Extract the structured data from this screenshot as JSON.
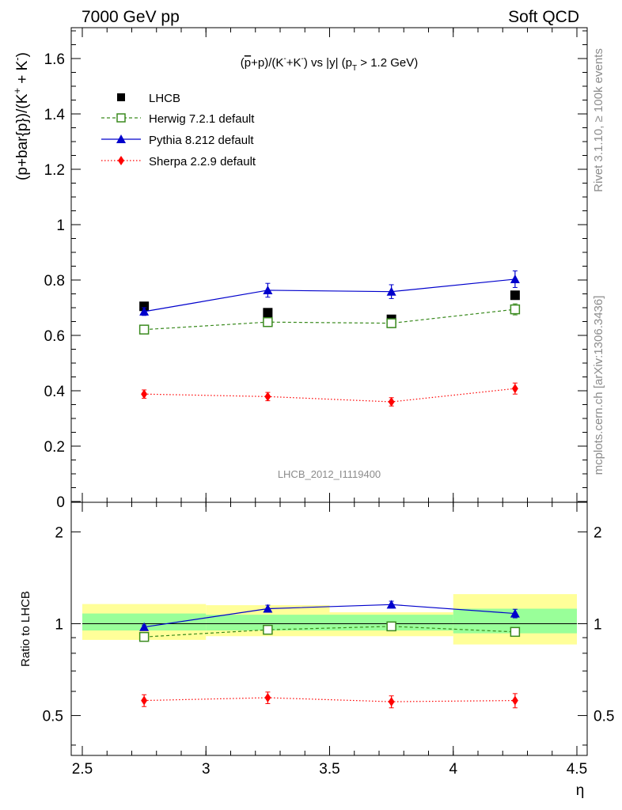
{
  "header": {
    "left": "7000 GeV pp",
    "right": "Soft QCD"
  },
  "side": {
    "rivet": "Rivet 3.1.10, ≥ 100k events",
    "mcplots": "mcplots.cern.ch [arXiv:1306.3436]"
  },
  "chart_data": [
    {
      "type": "line",
      "panel": "main",
      "title_parts": {
        "a": "(",
        "b": "p",
        "c": "+p)/(K",
        "d": "-",
        "e": "+K",
        "f": "-",
        "g": ") vs |y| (p",
        "h": "T",
        "i": " > 1.2 GeV)"
      },
      "ylabel": "(p+bar{p})/(K",
      "ylabel_sup1": "+",
      "ylabel_mid": " + K",
      "ylabel_sup2": "-",
      "ylabel_end": ")",
      "watermark": "LHCB_2012_I1119400",
      "xlim": [
        2.5,
        4.5
      ],
      "ylim": [
        0,
        1.72
      ],
      "yticks": [
        {
          "v": 0,
          "label": "0"
        },
        {
          "v": 0.2,
          "label": "0.2"
        },
        {
          "v": 0.4,
          "label": "0.4"
        },
        {
          "v": 0.6,
          "label": "0.6"
        },
        {
          "v": 0.8,
          "label": "0.8"
        },
        {
          "v": 1.0,
          "label": "1"
        },
        {
          "v": 1.2,
          "label": "1.2"
        },
        {
          "v": 1.4,
          "label": "1.4"
        },
        {
          "v": 1.6,
          "label": "1.6"
        }
      ],
      "x": [
        2.75,
        3.25,
        3.75,
        4.25
      ],
      "series": [
        {
          "name": "LHCB",
          "key": "lhcb",
          "color": "#000000",
          "marker": "square",
          "line": "none",
          "values": [
            0.705,
            0.682,
            0.658,
            0.745
          ],
          "errors": [
            0.01,
            0.01,
            0.01,
            0.01
          ]
        },
        {
          "name": "Herwig 7.2.1 default",
          "key": "herwig",
          "color": "#3a8a1e",
          "marker": "open-square",
          "line": "dashed",
          "values": [
            0.621,
            0.648,
            0.644,
            0.694
          ],
          "errors": [
            0.012,
            0.016,
            0.016,
            0.02
          ]
        },
        {
          "name": "Pythia 8.212 default",
          "key": "pythia",
          "color": "#0000cc",
          "marker": "triangle",
          "line": "solid",
          "values": [
            0.686,
            0.763,
            0.758,
            0.803
          ],
          "errors": [
            0.014,
            0.025,
            0.025,
            0.03
          ]
        },
        {
          "name": "Sherpa 2.2.9 default",
          "key": "sherpa",
          "color": "#ff0000",
          "marker": "diamond",
          "line": "dotted",
          "values": [
            0.388,
            0.379,
            0.36,
            0.408
          ],
          "errors": [
            0.015,
            0.015,
            0.015,
            0.02
          ]
        }
      ]
    },
    {
      "type": "line",
      "panel": "ratio",
      "ylabel": "Ratio to LHCB",
      "xlabel": "η",
      "xlim": [
        2.5,
        4.5
      ],
      "ylim_log": [
        0.37,
        2.5
      ],
      "xticks": [
        {
          "v": 2.5,
          "label": "2.5"
        },
        {
          "v": 3.0,
          "label": "3"
        },
        {
          "v": 3.5,
          "label": "3.5"
        },
        {
          "v": 4.0,
          "label": "4"
        },
        {
          "v": 4.5,
          "label": "4.5"
        }
      ],
      "yticks": [
        {
          "v": 0.5,
          "label": "0.5"
        },
        {
          "v": 1.0,
          "label": "1"
        },
        {
          "v": 2.0,
          "label": "2"
        }
      ],
      "bands": [
        {
          "x0": 2.5,
          "x1": 3.0,
          "yellow": [
            0.885,
            1.16
          ],
          "green": [
            0.95,
            1.08
          ]
        },
        {
          "x0": 3.0,
          "x1": 3.5,
          "yellow": [
            0.91,
            1.15
          ],
          "green": [
            0.95,
            1.07
          ]
        },
        {
          "x0": 3.5,
          "x1": 4.0,
          "yellow": [
            0.91,
            1.09
          ],
          "green": [
            0.95,
            1.07
          ]
        },
        {
          "x0": 4.0,
          "x1": 4.5,
          "yellow": [
            0.855,
            1.25
          ],
          "green": [
            0.93,
            1.12
          ]
        }
      ],
      "x": [
        2.75,
        3.25,
        3.75,
        4.25
      ],
      "series": [
        {
          "name": "Herwig 7.2.1 default",
          "key": "herwig",
          "color": "#3a8a1e",
          "marker": "open-square",
          "line": "dashed",
          "values": [
            0.905,
            0.955,
            0.98,
            0.94
          ],
          "errors": [
            0.015,
            0.02,
            0.02,
            0.025
          ]
        },
        {
          "name": "Pythia 8.212 default",
          "key": "pythia",
          "color": "#0000cc",
          "marker": "triangle",
          "line": "solid",
          "values": [
            0.975,
            1.12,
            1.155,
            1.08
          ],
          "errors": [
            0.015,
            0.03,
            0.03,
            0.035
          ]
        },
        {
          "name": "Sherpa 2.2.9 default",
          "key": "sherpa",
          "color": "#ff0000",
          "marker": "diamond",
          "line": "dotted",
          "values": [
            0.56,
            0.572,
            0.555,
            0.56
          ],
          "errors": [
            0.025,
            0.025,
            0.025,
            0.03
          ]
        }
      ]
    }
  ]
}
